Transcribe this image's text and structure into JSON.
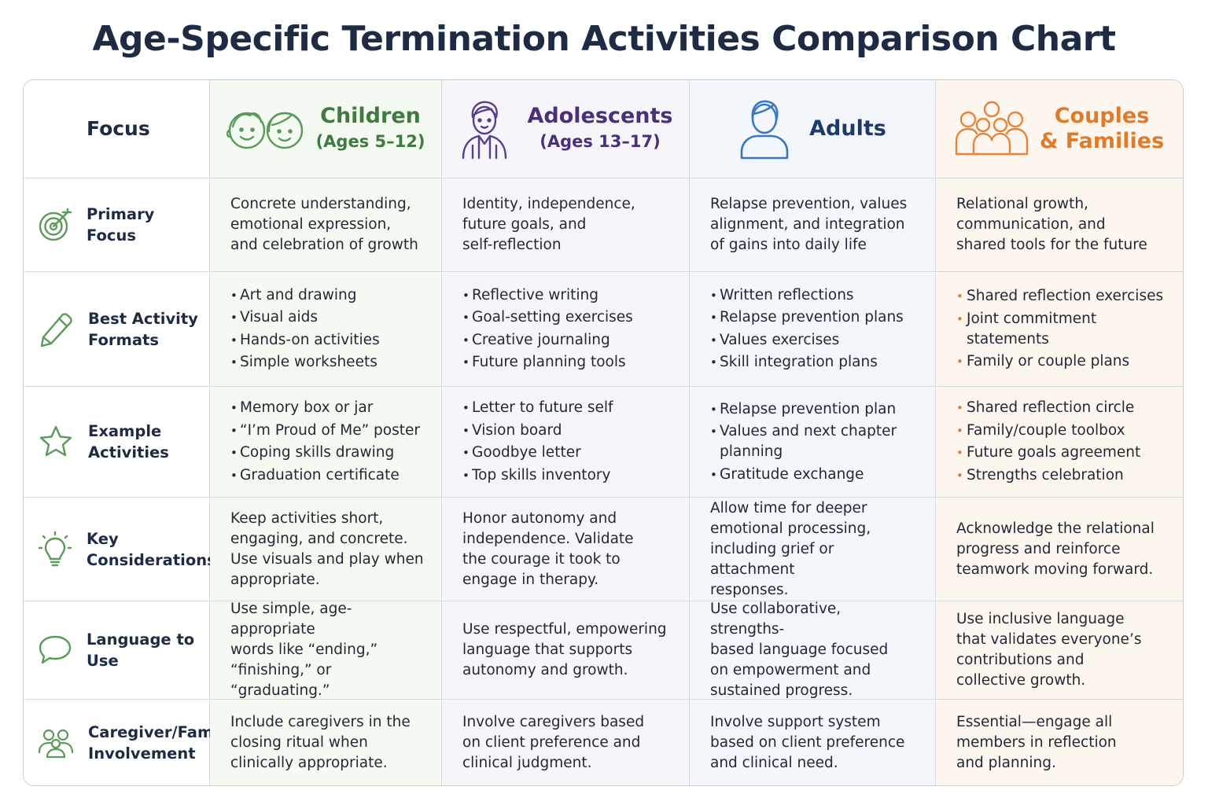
{
  "title": "Age-Specific Termination Activities Comparison Chart",
  "colors": {
    "children": "#3f7a3f",
    "adolescents": "#4b2f7a",
    "adults": "#1e3a6b",
    "couples": "#e07b2a",
    "icon_green": "#5b9a5b",
    "icon_purple": "#5a3f8a",
    "icon_blue": "#3b78c4",
    "icon_orange": "#e8843a"
  },
  "header": {
    "focus": "Focus",
    "children": {
      "name": "Children",
      "sub": "(Ages 5–12)",
      "icon": "two-children-faces-icon"
    },
    "adolescents": {
      "name": "Adolescents",
      "sub": "(Ages 13–17)",
      "icon": "adolescent-icon"
    },
    "adults": {
      "name": "Adults",
      "icon": "adult-person-icon"
    },
    "couples": {
      "name": "Couples",
      "sub": "& Families",
      "icon": "family-group-icon"
    }
  },
  "rows": [
    {
      "label": "Primary Focus",
      "icon": "target-icon",
      "children": "Concrete understanding,\nemotional expression,\nand celebration of growth",
      "adolescents": "Identity, independence,\nfuture goals, and\nself-reflection",
      "adults": "Relapse prevention, values\nalignment, and integration\nof gains into daily life",
      "couples": "Relational growth,\ncommunication, and\nshared tools for the future"
    },
    {
      "label": "Best Activity\nFormats",
      "icon": "pencil-icon",
      "children": [
        "Art and drawing",
        "Visual aids",
        "Hands-on activities",
        "Simple worksheets"
      ],
      "adolescents": [
        "Reflective writing",
        "Goal-setting exercises",
        "Creative journaling",
        "Future planning tools"
      ],
      "adults": [
        "Written reflections",
        "Relapse prevention plans",
        "Values exercises",
        "Skill integration plans"
      ],
      "couples": [
        "Shared reflection exercises",
        "Joint commitment\nstatements",
        "Family or couple plans"
      ]
    },
    {
      "label": "Example\nActivities",
      "icon": "star-icon",
      "children": [
        "Memory box or jar",
        "“I’m Proud of Me” poster",
        "Coping skills drawing",
        "Graduation certificate"
      ],
      "adolescents": [
        "Letter to future self",
        "Vision board",
        "Goodbye letter",
        "Top skills inventory"
      ],
      "adults": [
        "Relapse prevention plan",
        "Values and next chapter\nplanning",
        "Gratitude exchange"
      ],
      "couples": [
        "Shared reflection circle",
        "Family/couple toolbox",
        "Future goals agreement",
        "Strengths celebration"
      ]
    },
    {
      "label": "Key\nConsiderations",
      "icon": "lightbulb-icon",
      "children": "Keep activities short,\nengaging, and concrete.\nUse visuals and play when\nappropriate.",
      "adolescents": "Honor autonomy and\nindependence. Validate\nthe courage it took to\nengage in therapy.",
      "adults": "Allow time for deeper\nemotional processing,\nincluding grief or attachment\nresponses.",
      "couples": "Acknowledge the relational\nprogress and reinforce\nteamwork moving forward."
    },
    {
      "label": "Language to Use",
      "icon": "speech-bubble-icon",
      "children": "Use simple, age-appropriate\nwords like “ending,”\n“finishing,” or “graduating.”",
      "adolescents": "Use respectful, empowering\nlanguage that supports\nautonomy and growth.",
      "adults": "Use collaborative, strengths-\nbased language focused\non empowerment and\nsustained progress.",
      "couples": "Use inclusive language\nthat validates everyone’s\ncontributions and\ncollective growth."
    },
    {
      "label": "Caregiver/Family\nInvolvement",
      "icon": "people-icon",
      "children": "Include caregivers in the\nclosing ritual when\nclinically appropriate.",
      "adolescents": "Involve caregivers based\non client preference and\nclinical judgment.",
      "adults": "Involve support system\nbased on client preference\nand clinical need.",
      "couples": "Essential—engage all\nmembers in reflection\nand planning."
    }
  ]
}
